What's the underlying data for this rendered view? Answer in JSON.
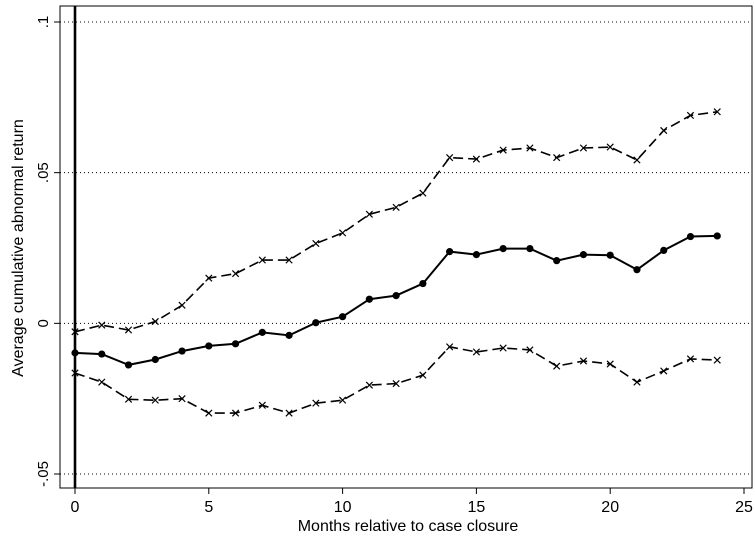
{
  "chart_data": {
    "type": "line",
    "title": "",
    "xlabel": "Months relative to case closure",
    "ylabel": "Average cumulative abnormal return",
    "xlim": [
      0,
      25
    ],
    "ylim": [
      -0.05,
      0.1
    ],
    "xticks": [
      0,
      5,
      10,
      15,
      20,
      25
    ],
    "xtick_labels": [
      "0",
      "5",
      "10",
      "15",
      "20",
      "25"
    ],
    "yticks": [
      -0.05,
      0,
      0.05,
      0.1
    ],
    "ytick_labels": [
      "-.05",
      "0",
      ".05",
      ".1"
    ],
    "grid": "horizontal dotted",
    "vertical_line_at_x": 0,
    "x": [
      0,
      1,
      2,
      3,
      4,
      5,
      6,
      7,
      8,
      9,
      10,
      11,
      12,
      13,
      14,
      15,
      16,
      17,
      18,
      19,
      20,
      21,
      22,
      23,
      24
    ],
    "series": [
      {
        "style": "dashed",
        "marker": "x",
        "values": [
          -0.0028,
          -0.0006,
          -0.0022,
          0.0006,
          0.006,
          0.015,
          0.0165,
          0.021,
          0.021,
          0.0265,
          0.03,
          0.0362,
          0.0385,
          0.0432,
          0.055,
          0.0545,
          0.0575,
          0.0582,
          0.055,
          0.0582,
          0.0585,
          0.0542,
          0.064,
          0.069,
          0.0702
        ]
      },
      {
        "style": "solid",
        "marker": "dot",
        "values": [
          -0.0098,
          -0.0102,
          -0.0138,
          -0.012,
          -0.0092,
          -0.0075,
          -0.0068,
          -0.003,
          -0.004,
          0.0002,
          0.0022,
          0.008,
          0.0092,
          0.0132,
          0.0238,
          0.0228,
          0.0248,
          0.0248,
          0.0208,
          0.0228,
          0.0226,
          0.0178,
          0.0242,
          0.0288,
          0.029
        ]
      },
      {
        "style": "dashed",
        "marker": "x",
        "values": [
          -0.0165,
          -0.0195,
          -0.0252,
          -0.0255,
          -0.025,
          -0.0298,
          -0.0298,
          -0.0272,
          -0.0298,
          -0.0265,
          -0.0255,
          -0.0205,
          -0.02,
          -0.0172,
          -0.0078,
          -0.0095,
          -0.0082,
          -0.0088,
          -0.0142,
          -0.0125,
          -0.0135,
          -0.0195,
          -0.0158,
          -0.0118,
          -0.0122
        ]
      }
    ]
  }
}
